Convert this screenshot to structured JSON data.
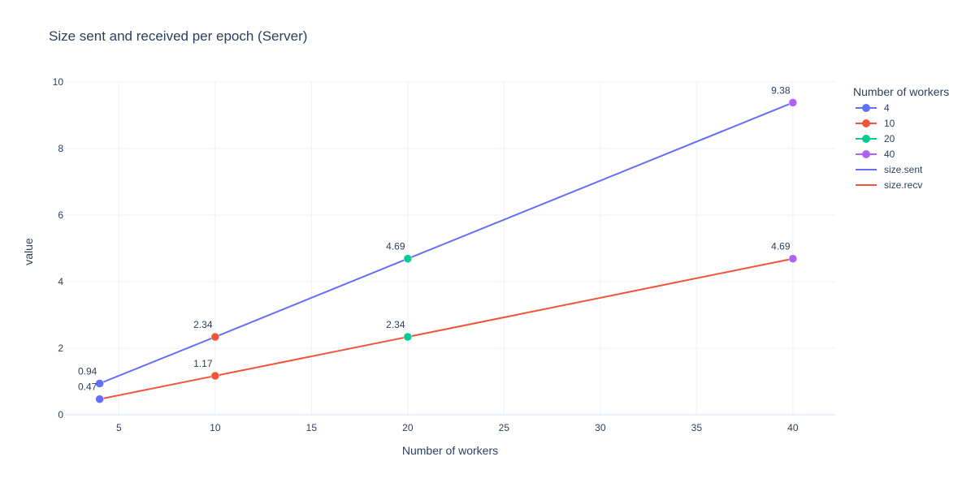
{
  "chart_data": {
    "type": "line",
    "title": "Size sent and received per epoch (Server)",
    "xlabel": "Number of workers",
    "ylabel": "value",
    "xlim": [
      2.2,
      42.2
    ],
    "ylim": [
      0,
      10
    ],
    "x_ticks": [
      5,
      10,
      15,
      20,
      25,
      30,
      35,
      40
    ],
    "y_ticks": [
      0,
      2,
      4,
      6,
      8,
      10
    ],
    "grid": true,
    "legend_title": "Number of workers",
    "legend_position": "right",
    "series": [
      {
        "name": "size.sent",
        "color": "#636efa",
        "x": [
          4,
          10,
          20,
          40
        ],
        "values": [
          0.94,
          2.34,
          4.69,
          9.38
        ],
        "labels": [
          "0.94",
          "2.34",
          "4.69",
          "9.38"
        ]
      },
      {
        "name": "size.recv",
        "color": "#ef553b",
        "x": [
          4,
          10,
          20,
          40
        ],
        "values": [
          0.47,
          1.17,
          2.34,
          4.69
        ],
        "labels": [
          "0.47",
          "1.17",
          "2.34",
          "4.69"
        ]
      }
    ],
    "marker_groups": [
      {
        "name": "4",
        "color": "#636efa",
        "x": 4
      },
      {
        "name": "10",
        "color": "#ef553b",
        "x": 10
      },
      {
        "name": "20",
        "color": "#00cc96",
        "x": 20
      },
      {
        "name": "40",
        "color": "#ab63fa",
        "x": 40
      }
    ]
  }
}
